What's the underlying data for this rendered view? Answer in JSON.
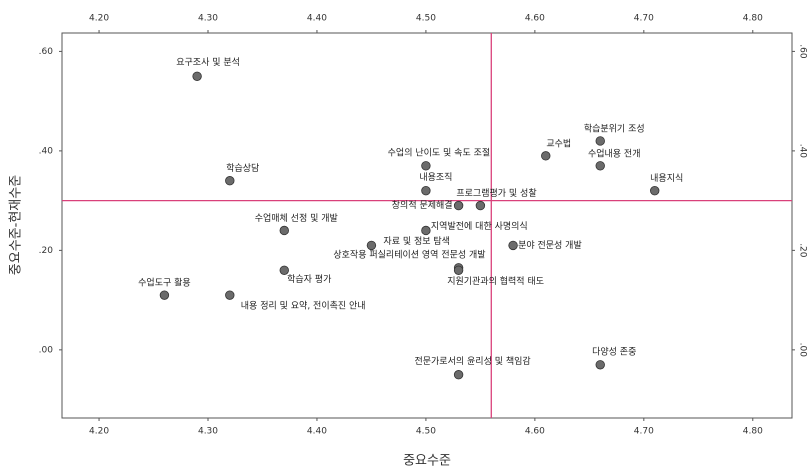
{
  "chart_data": {
    "type": "scatter",
    "x_label": "중요수준",
    "y_label": "중요수준-현재수준",
    "xlim": [
      4.166,
      4.836
    ],
    "ylim": [
      -0.137,
      0.637
    ],
    "xticks": [
      {
        "value": 4.2,
        "label": "4.20"
      },
      {
        "value": 4.3,
        "label": "4.30"
      },
      {
        "value": 4.4,
        "label": "4.40"
      },
      {
        "value": 4.5,
        "label": "4.50"
      },
      {
        "value": 4.6,
        "label": "4.60"
      },
      {
        "value": 4.7,
        "label": "4.70"
      },
      {
        "value": 4.8,
        "label": "4.80"
      }
    ],
    "yticks": [
      {
        "value": 0,
        "label": ".00"
      },
      {
        "value": 0.2,
        "label": ".20"
      },
      {
        "value": 0.4,
        "label": ".40"
      },
      {
        "value": 0.6,
        "label": ".60"
      }
    ],
    "mean_x": 4.56,
    "mean_y": 0.3,
    "reference_color": "#d9407a",
    "color": "#6b6b6b",
    "labels": [
      "요구조사 및 분석",
      "학습상담",
      "수업매체 선정 및 개발",
      "학습자 평가",
      "수업도구 활용",
      "내용 정리 및 요약, 전이촉진 안내",
      "수업의 난이도 및 속도 조절",
      "내용조직",
      "창의적 문제해결",
      "프로그램평가 및 성찰",
      "지역발전에 대한 사명의식",
      "자료 및 정보 탐색",
      "상호작용 퍼실리테이션 영역 전문성 개발",
      "분야 전문성 개발",
      "교수법",
      "학습분위기 조성",
      "수업내용 전개",
      "내용지식",
      "전문가로서의 윤리성 및 책임감",
      "다양성 존중",
      "지원기관과의 협력적 태도"
    ],
    "x": [
      4.29,
      4.32,
      4.37,
      4.37,
      4.26,
      4.32,
      4.5,
      4.5,
      4.53,
      4.55,
      4.5,
      4.45,
      4.53,
      4.58,
      4.61,
      4.66,
      4.66,
      4.71,
      4.53,
      4.66,
      4.53
    ],
    "values": [
      0.55,
      0.34,
      0.24,
      0.16,
      0.11,
      0.11,
      0.37,
      0.32,
      0.29,
      0.29,
      0.24,
      0.21,
      0.165,
      0.21,
      0.39,
      0.42,
      0.37,
      0.32,
      -0.05,
      -0.03,
      0.16
    ]
  }
}
